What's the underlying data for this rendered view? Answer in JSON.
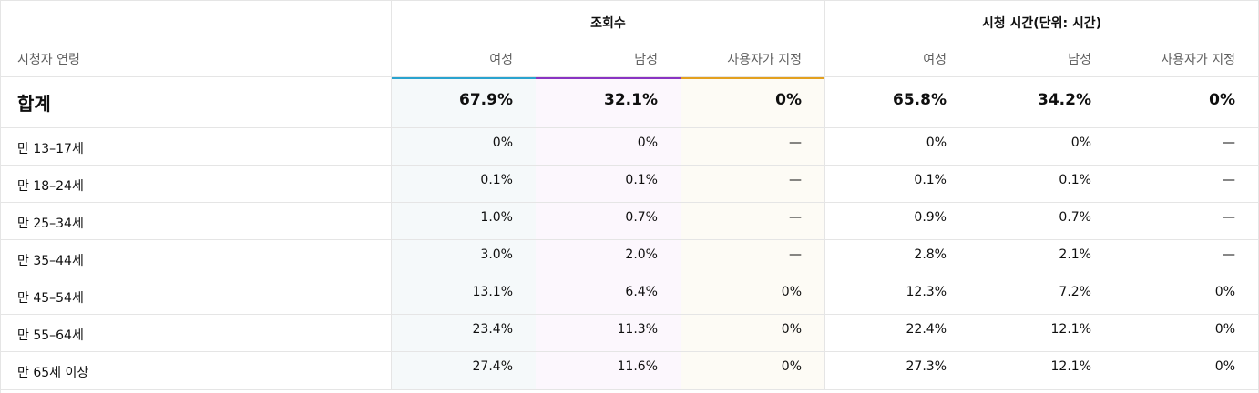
{
  "groups": {
    "views": "조회수",
    "watch_time": "시청 시간(단위: 시간)"
  },
  "headers": {
    "age": "시청자 연령",
    "female": "여성",
    "male": "남성",
    "user_specified": "사용자가 지정"
  },
  "colors": {
    "female": "#2aa3cf",
    "male": "#8a34c2",
    "user_specified": "#e3a01f"
  },
  "total": {
    "label": "합계",
    "views": [
      "67.9%",
      "32.1%",
      "0%"
    ],
    "watch": [
      "65.8%",
      "34.2%",
      "0%"
    ]
  },
  "rows": [
    {
      "label": "만 13–17세",
      "views": [
        "0%",
        "0%",
        "—"
      ],
      "watch": [
        "0%",
        "0%",
        "—"
      ]
    },
    {
      "label": "만 18–24세",
      "views": [
        "0.1%",
        "0.1%",
        "—"
      ],
      "watch": [
        "0.1%",
        "0.1%",
        "—"
      ]
    },
    {
      "label": "만 25–34세",
      "views": [
        "1.0%",
        "0.7%",
        "—"
      ],
      "watch": [
        "0.9%",
        "0.7%",
        "—"
      ]
    },
    {
      "label": "만 35–44세",
      "views": [
        "3.0%",
        "2.0%",
        "—"
      ],
      "watch": [
        "2.8%",
        "2.1%",
        "—"
      ]
    },
    {
      "label": "만 45–54세",
      "views": [
        "13.1%",
        "6.4%",
        "0%"
      ],
      "watch": [
        "12.3%",
        "7.2%",
        "0%"
      ]
    },
    {
      "label": "만 55–64세",
      "views": [
        "23.4%",
        "11.3%",
        "0%"
      ],
      "watch": [
        "22.4%",
        "12.1%",
        "0%"
      ]
    },
    {
      "label": "만 65세 이상",
      "views": [
        "27.4%",
        "11.6%",
        "0%"
      ],
      "watch": [
        "27.3%",
        "12.1%",
        "0%"
      ]
    }
  ]
}
